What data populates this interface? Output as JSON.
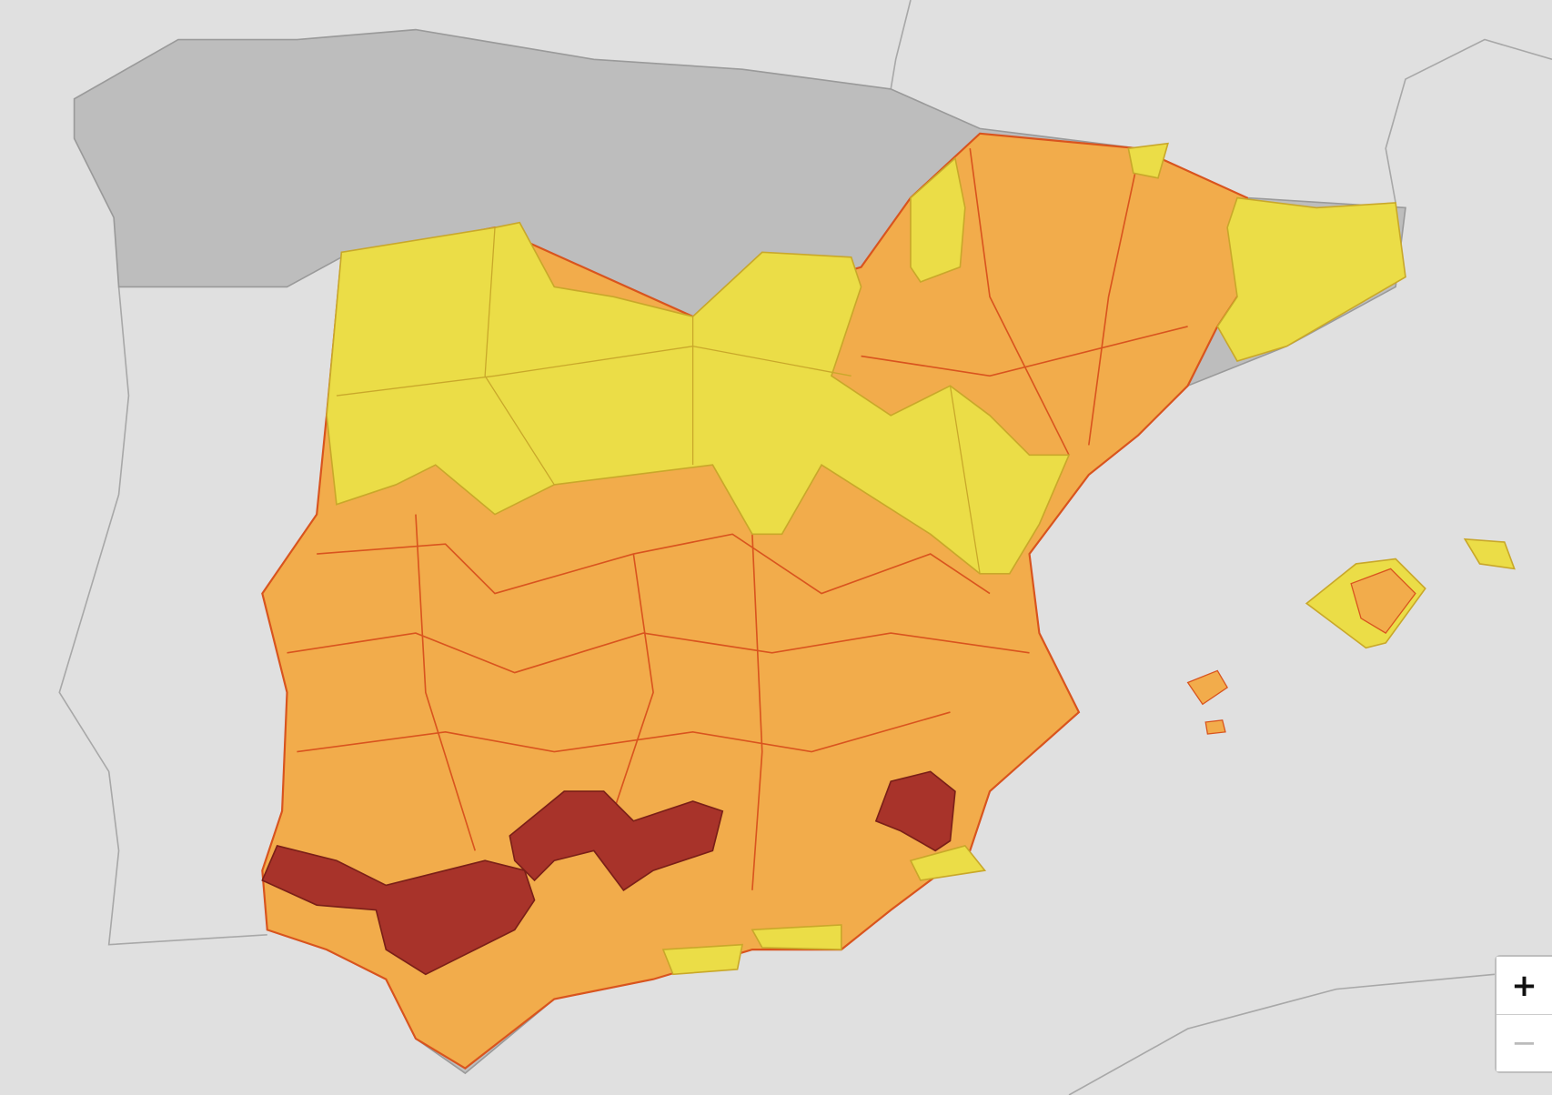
{
  "zoom_controls": {
    "zoom_in": "+",
    "zoom_out": "−"
  }
}
